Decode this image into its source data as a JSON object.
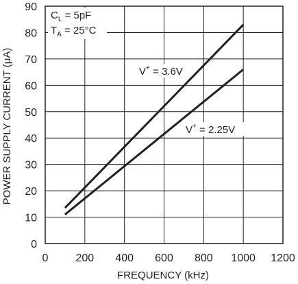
{
  "chart_data": {
    "type": "line",
    "title": "",
    "xlabel": "FREQUENCY (kHz)",
    "ylabel": "POWER SUPPLY CURRENT (μA)",
    "xlim": [
      0,
      1200
    ],
    "ylim": [
      0,
      90
    ],
    "xticks": [
      0,
      200,
      400,
      600,
      800,
      1000,
      1200
    ],
    "yticks": [
      0,
      10,
      20,
      30,
      40,
      50,
      60,
      70,
      80,
      90
    ],
    "grid": true,
    "series": [
      {
        "name": "V⁺ = 3.6V",
        "x": [
          100,
          1000
        ],
        "y": [
          13.5,
          83
        ]
      },
      {
        "name": "V⁺ = 2.25V",
        "x": [
          100,
          1000
        ],
        "y": [
          11,
          66
        ]
      }
    ],
    "annotations": {
      "cl_main": "C",
      "cl_sub": "L",
      "cl_rest": " = 5pF",
      "ta_main": "T",
      "ta_sub": "A",
      "ta_rest": " = 25°C",
      "v36_main": "V",
      "v36_sup": "+",
      "v36_rest": " = 3.6V",
      "v225_main": "V",
      "v225_sup": "+",
      "v225_rest": " = 2.25V"
    },
    "colors": {
      "line": "#231f20",
      "grid": "#231f20",
      "background": "#ffffff"
    }
  }
}
